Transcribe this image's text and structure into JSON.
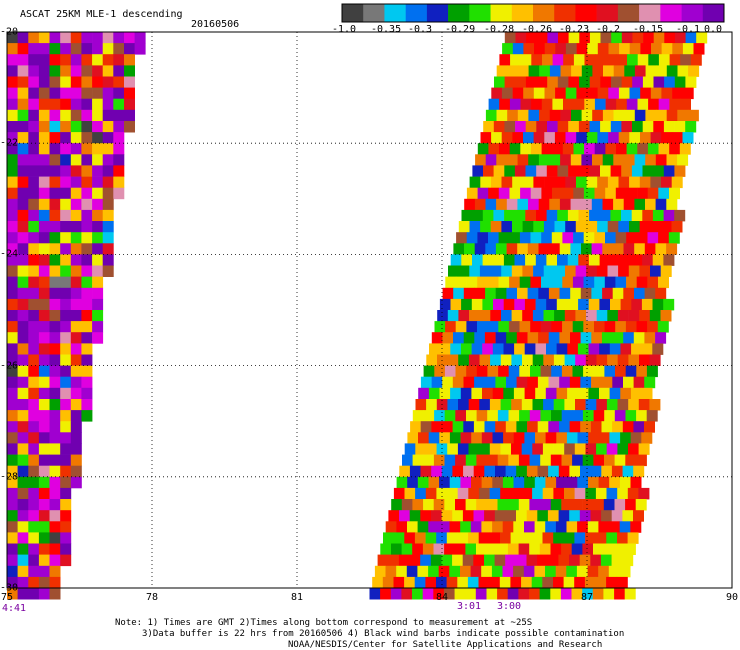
{
  "header": {
    "title": "ASCAT 25KM MLE-1 descending",
    "date": "20160506"
  },
  "colorbar": {
    "labels": [
      "-1.0",
      "-0.35",
      "-0.3",
      "-0.29",
      "-0.28",
      "-0.26",
      "-0.23",
      "-0.2",
      "-0.15",
      "-0.1",
      "0.0"
    ],
    "colors": [
      "#404040",
      "#787878",
      "#00c8f0",
      "#0070f0",
      "#1020c0",
      "#00a000",
      "#20e000",
      "#f0f000",
      "#ffc000",
      "#f07800",
      "#f03000",
      "#ff0000",
      "#e01020",
      "#a05030",
      "#e090b0",
      "#e000e0",
      "#a000d0",
      "#7000b0"
    ]
  },
  "chart_data": {
    "type": "heatmap",
    "title": "ASCAT 25KM MLE-1 descending",
    "date": "20160506",
    "x_ticks": [
      "75",
      "78",
      "81",
      "84",
      "87",
      "90"
    ],
    "y_ticks": [
      "-20",
      "-22",
      "-24",
      "-26",
      "-28",
      "-30"
    ],
    "xlim": [
      75,
      90
    ],
    "ylim": [
      -30,
      -20
    ],
    "grid": true,
    "swaths": [
      {
        "time": "4:41",
        "lon_range_top": [
          75.0,
          77.7
        ],
        "lon_range_bottom": [
          75.0,
          76.0
        ],
        "dominant_value_range": [
          -0.15,
          0.0
        ]
      },
      {
        "time": "3:01",
        "lon_range_top": [
          85.3,
          89.3
        ],
        "lon_range_bottom": [
          82.5,
          87.8
        ],
        "dominant_value_range": [
          -0.35,
          -0.2
        ]
      },
      {
        "time": "3:00"
      }
    ],
    "time_labels": [
      {
        "label": "4:41",
        "lon": 75.0
      },
      {
        "label": "3:01",
        "lon": 84.5
      },
      {
        "label": "3:00",
        "lon": 85.5
      }
    ]
  },
  "notes": {
    "line1": "Note: 1) Times are GMT 2)Times along bottom correspond to measurement at ~25S",
    "line2": "3)Data buffer is 22 hrs from 20160506 4) Black wind barbs indicate possible contamination",
    "line3": "NOAA/NESDIS/Center for Satellite Applications and Research"
  }
}
